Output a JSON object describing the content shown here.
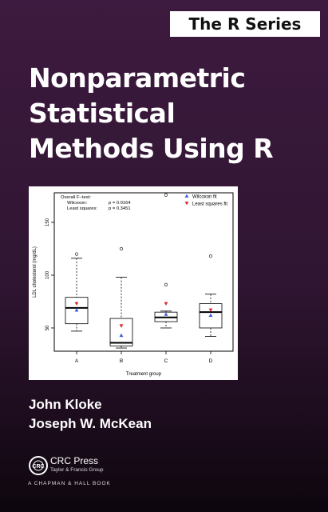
{
  "series_badge": "The R Series",
  "title_lines": [
    "Nonparametric",
    "Statistical",
    "Methods Using R"
  ],
  "authors": [
    "John Kloke",
    "Joseph W. McKean"
  ],
  "publisher": {
    "name": "CRC Press",
    "subtitle": "Taylor & Francis Group",
    "imprint": "A CHAPMAN & HALL BOOK",
    "logo_text": "CRC"
  },
  "chart_data": {
    "type": "box",
    "title": "",
    "xlabel": "Treatment group",
    "ylabel": "LDL cholesterol (mg/dL)",
    "ylim": [
      28,
      178
    ],
    "yticks": [
      50,
      100,
      150
    ],
    "categories": [
      "A",
      "B",
      "C",
      "D"
    ],
    "boxes": [
      {
        "whisker_low": 47,
        "q1": 54,
        "median": 69,
        "q3": 79,
        "whisker_high": 116,
        "outliers": [
          120
        ]
      },
      {
        "whisker_low": 31,
        "q1": 33,
        "median": 36,
        "q3": 59,
        "whisker_high": 98,
        "outliers": [
          125
        ]
      },
      {
        "whisker_low": 50,
        "q1": 56,
        "median": 60,
        "q3": 65,
        "whisker_high": 66,
        "outliers": [
          91,
          176
        ]
      },
      {
        "whisker_low": 42,
        "q1": 50,
        "median": 65,
        "q3": 73,
        "whisker_high": 82,
        "outliers": [
          118
        ]
      }
    ],
    "series": [
      {
        "name": "Wilcoxon fit",
        "marker": "triangle-up",
        "color": "#3a5bd9",
        "values": [
          67,
          43,
          63,
          62
        ]
      },
      {
        "name": "Least squares fit",
        "marker": "triangle-down",
        "color": "#d62728",
        "values": [
          73,
          52,
          73,
          67
        ]
      }
    ],
    "annotation_lines": [
      [
        "Overall F−test:",
        ""
      ],
      [
        "Wilcoxon:",
        "p = 0.0164"
      ],
      [
        "Least squares:",
        "p = 0.3451"
      ]
    ],
    "legend_position": "top-right",
    "grid": false
  }
}
